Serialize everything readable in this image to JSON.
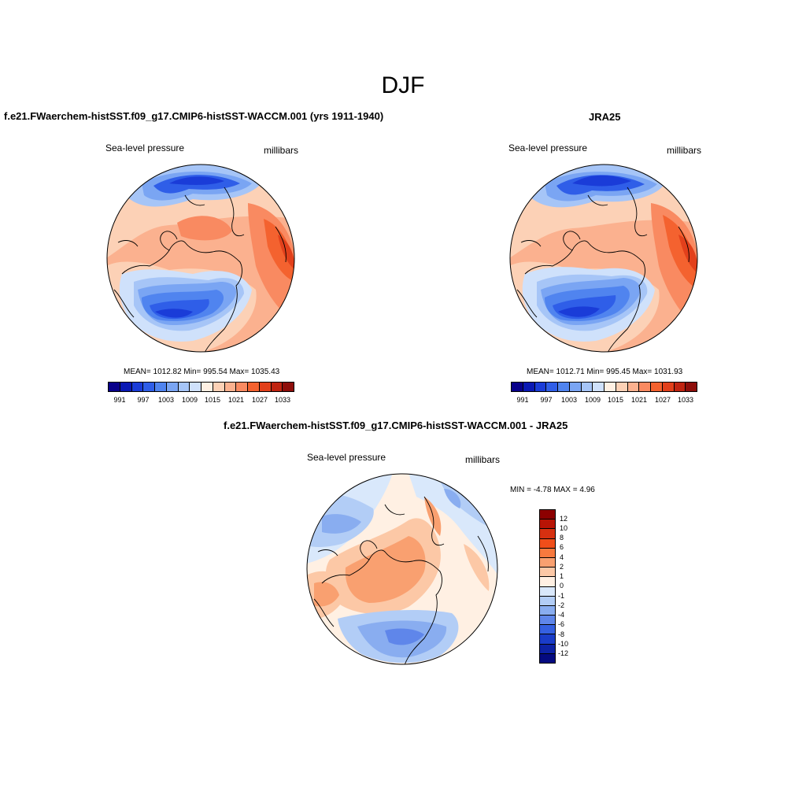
{
  "title": "DJF",
  "colors": {
    "slp_levels": [
      "#08008a",
      "#0a19b4",
      "#1a3cd8",
      "#2f5ee8",
      "#5084ef",
      "#7aa5f3",
      "#a6c5f7",
      "#cfe1fb",
      "#fff0e3",
      "#fcd1b6",
      "#fbb18f",
      "#f98a61",
      "#f4622f",
      "#e2401b",
      "#c02411",
      "#8e0e0a"
    ],
    "diff_levels": [
      "#8c0000",
      "#b81405",
      "#d63010",
      "#f04e1a",
      "#f7793e",
      "#f9a070",
      "#fcc8a6",
      "#fff0e3",
      "#d9e8fb",
      "#b2cdf6",
      "#89adf0",
      "#5f86ea",
      "#3560e1",
      "#1a3cc8",
      "#0d22a4",
      "#040a80"
    ],
    "coastline": "#000000"
  },
  "panels": [
    {
      "title": "f.e21.FWaerchem-histSST.f09_g17.CMIP6-histSST-WACCM.001 (yrs 1911-1940)",
      "field": "Sea-level pressure",
      "units": "millibars",
      "stats": "MEAN= 1012.82  Min= 995.54  Max= 1035.43",
      "mean": 1012.82,
      "min": 995.54,
      "max": 1035.43,
      "colorbar_ticks": [
        "991",
        "997",
        "1003",
        "1009",
        "1015",
        "1021",
        "1027",
        "1033"
      ]
    },
    {
      "title": "JRA25",
      "field": "Sea-level pressure",
      "units": "millibars",
      "stats": "MEAN= 1012.71  Min= 995.45  Max= 1031.93",
      "mean": 1012.71,
      "min": 995.45,
      "max": 1031.93,
      "colorbar_ticks": [
        "991",
        "997",
        "1003",
        "1009",
        "1015",
        "1021",
        "1027",
        "1033"
      ]
    },
    {
      "title": "f.e21.FWaerchem-histSST.f09_g17.CMIP6-histSST-WACCM.001 - JRA25",
      "field": "Sea-level pressure",
      "units": "millibars",
      "stats": "MIN =  -4.78 MAX =   4.96",
      "min": -4.78,
      "max": 4.96,
      "colorbar_ticks": [
        "12",
        "10",
        "8",
        "6",
        "4",
        "2",
        "1",
        "0",
        "-1",
        "-2",
        "-4",
        "-6",
        "-8",
        "-10",
        "-12"
      ]
    }
  ]
}
